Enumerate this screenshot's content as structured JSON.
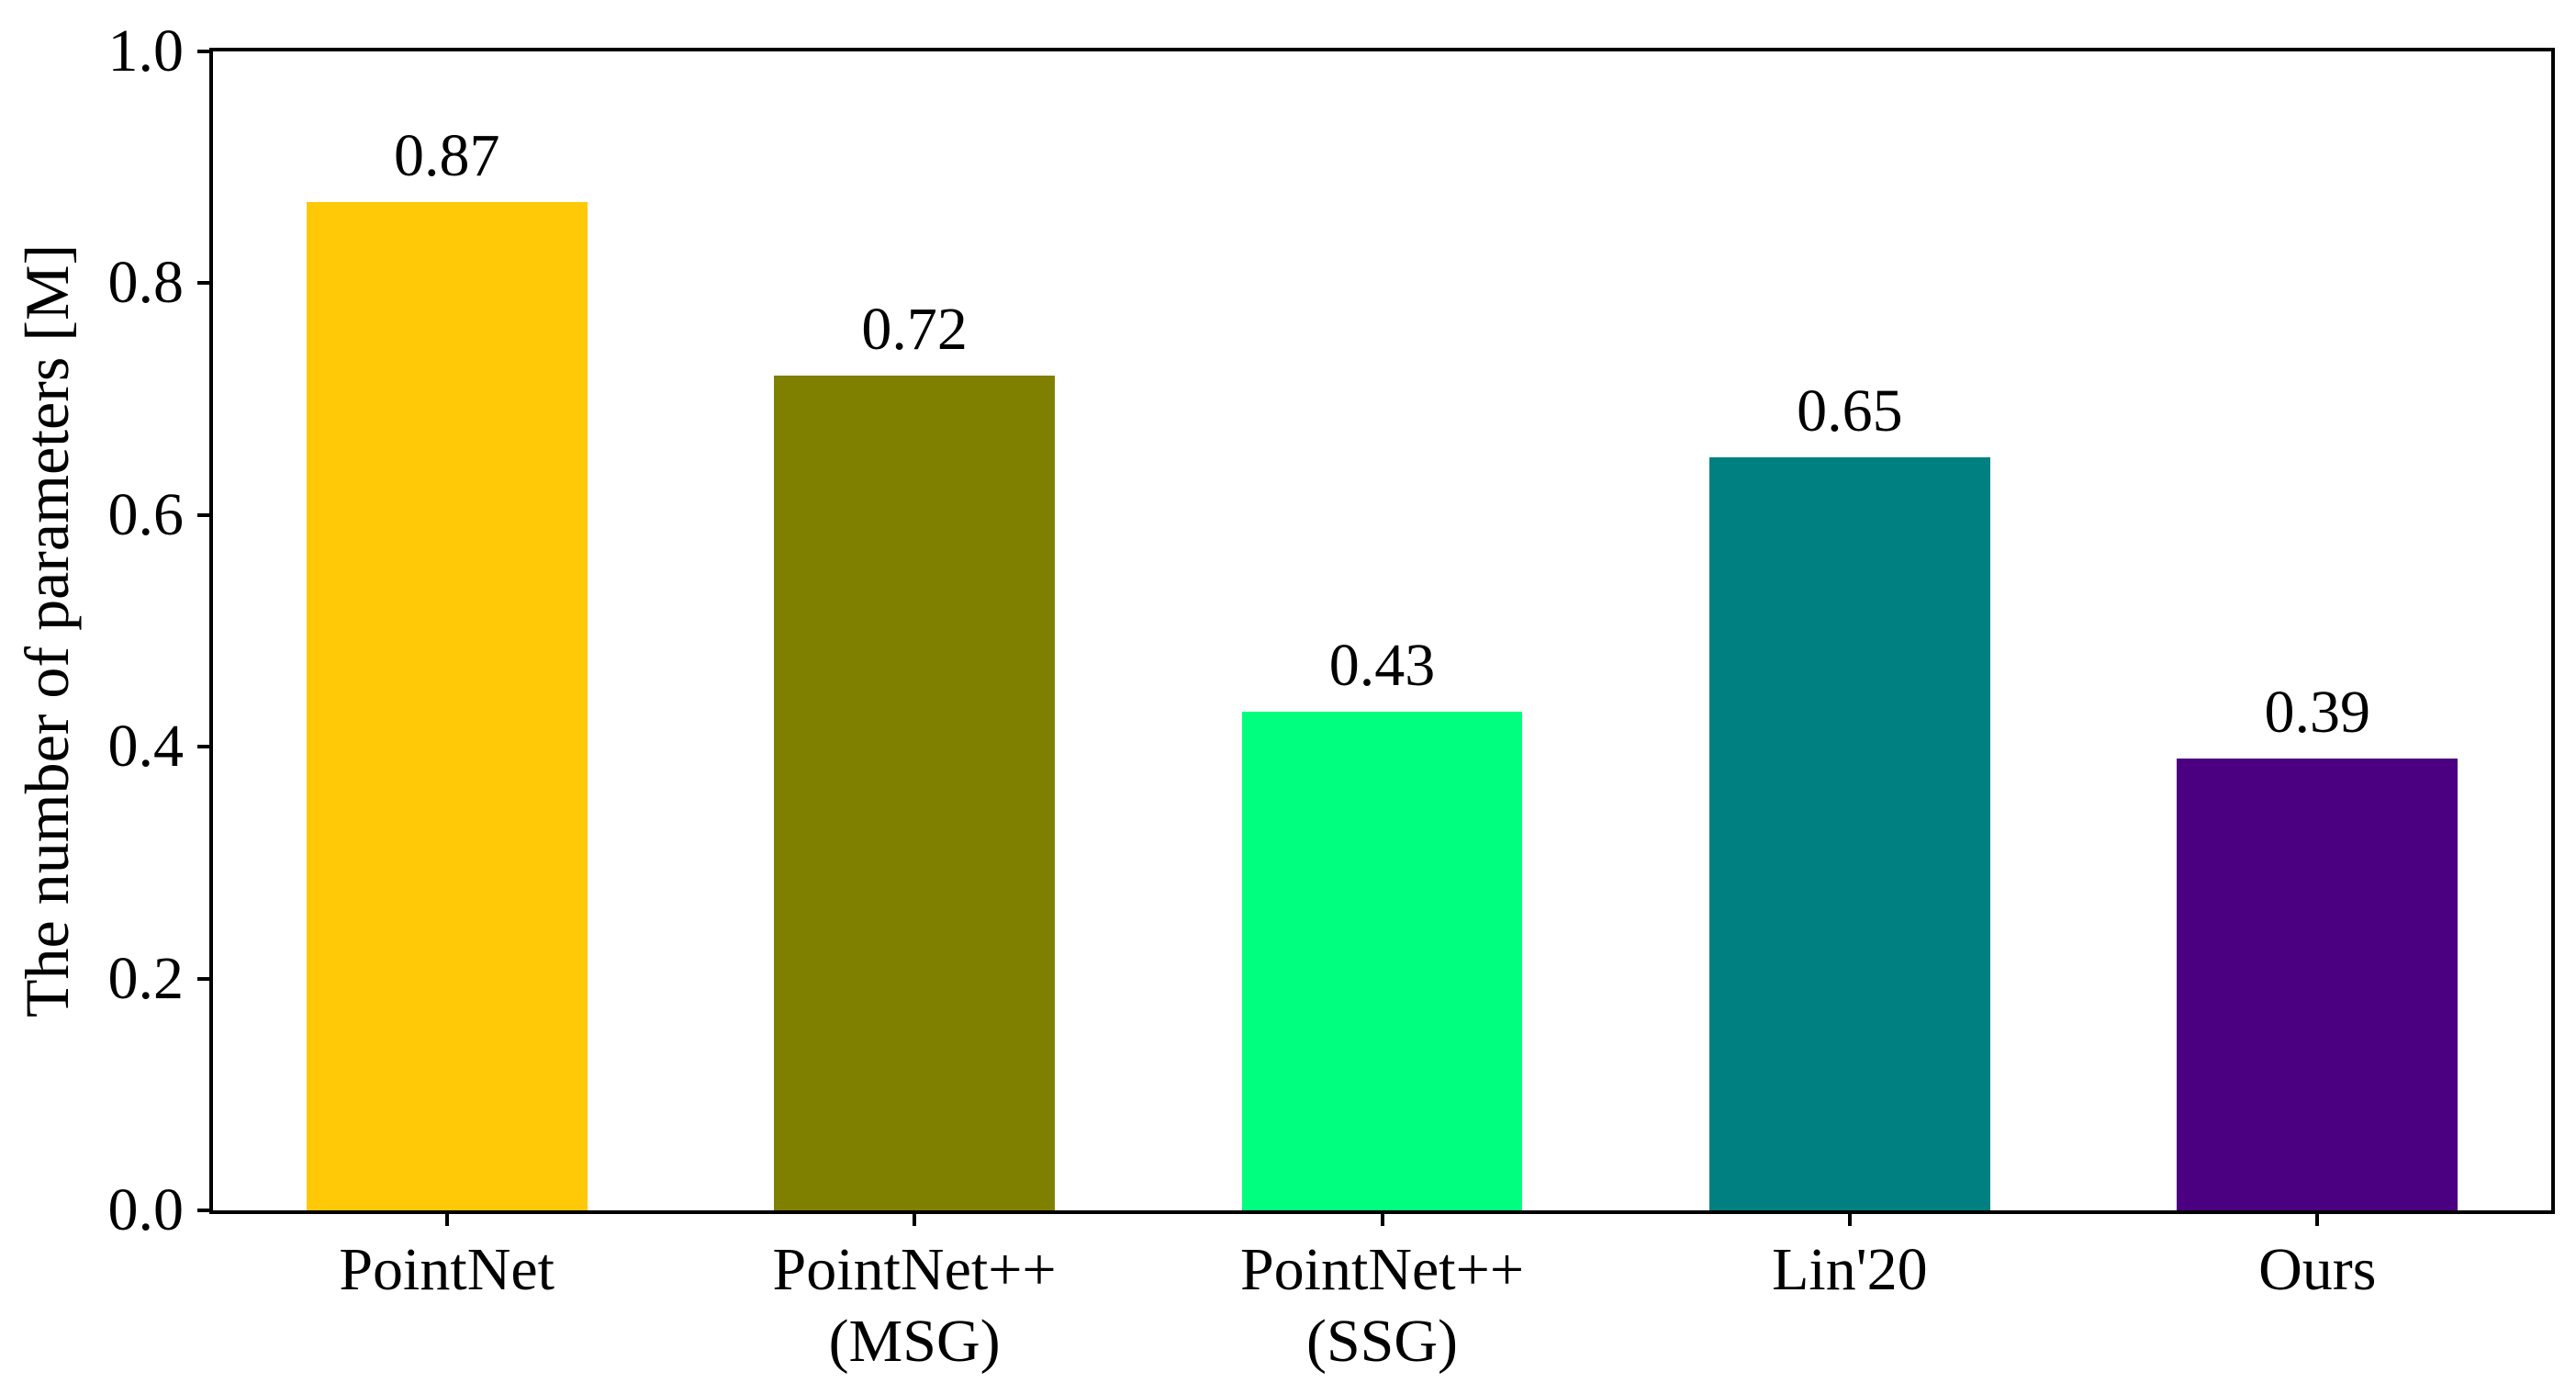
{
  "chart_data": {
    "type": "bar",
    "title": "",
    "xlabel": "",
    "ylabel": "The number of parameters [M]",
    "categories": [
      "PointNet",
      "PointNet++\n(MSG)",
      "PointNet++\n(SSG)",
      "Lin'20",
      "Ours"
    ],
    "values": [
      0.87,
      0.72,
      0.43,
      0.65,
      0.39
    ],
    "value_labels": [
      "0.87",
      "0.72",
      "0.43",
      "0.65",
      "0.39"
    ],
    "bar_colors": [
      "#FFC907",
      "#808000",
      "#00FF7F",
      "#008080",
      "#4B0082"
    ],
    "ylim": [
      0.0,
      1.0
    ],
    "yticks": [
      0.0,
      0.2,
      0.4,
      0.6,
      0.8,
      1.0
    ],
    "ytick_labels": [
      "0.0",
      "0.2",
      "0.4",
      "0.6",
      "0.8",
      "1.0"
    ],
    "bar_width_fraction": 0.6,
    "grid": false,
    "legend": null,
    "axis_color": "#000000",
    "background_color": "#ffffff"
  }
}
